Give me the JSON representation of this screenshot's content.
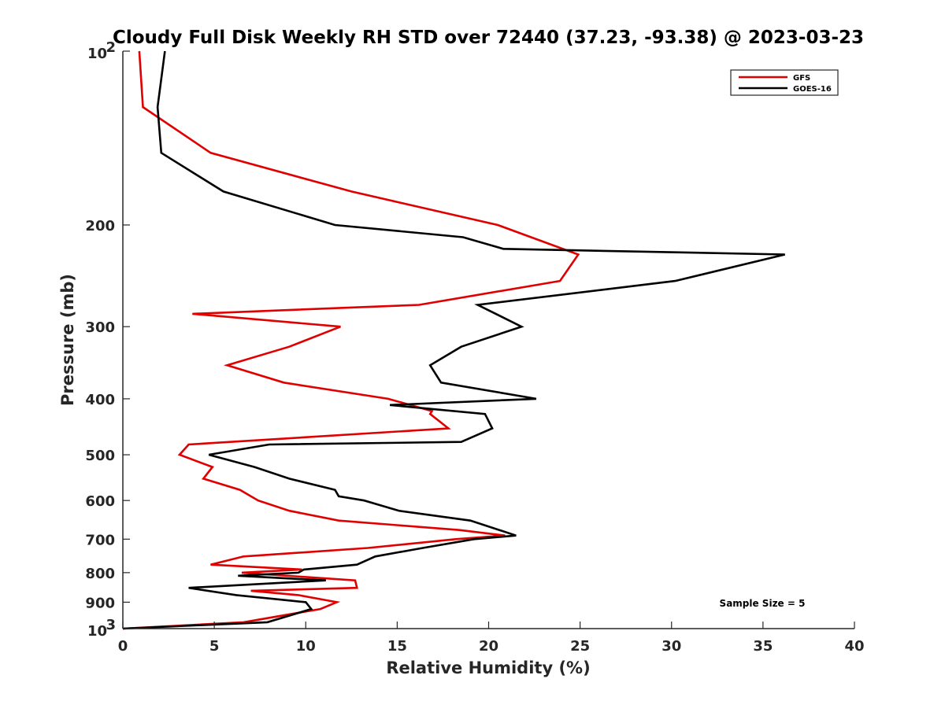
{
  "chart_data": {
    "type": "line",
    "title": "Cloudy Full Disk Weekly RH STD over 72440 (37.23, -93.38) @ 2023-03-23",
    "xlabel": "Relative Humidity (%)",
    "ylabel": "Pressure (mb)",
    "xlim": [
      0,
      40
    ],
    "ylim": [
      100,
      1000
    ],
    "y_scale": "log",
    "y_reversed": true,
    "grid": false,
    "legend_position": "top-right",
    "x_ticks": [
      "0",
      "5",
      "10",
      "15",
      "20",
      "25",
      "30",
      "35",
      "40"
    ],
    "y_ticks": [
      {
        "value": 100,
        "base": "10",
        "exp": "2"
      },
      {
        "value": 200,
        "label": "200"
      },
      {
        "value": 300,
        "label": "300"
      },
      {
        "value": 400,
        "label": "400"
      },
      {
        "value": 500,
        "label": "500"
      },
      {
        "value": 600,
        "label": "600"
      },
      {
        "value": 700,
        "label": "700"
      },
      {
        "value": 800,
        "label": "800"
      },
      {
        "value": 900,
        "label": "900"
      },
      {
        "value": 1000,
        "base": "10",
        "exp": "3"
      }
    ],
    "annotation": "Sample Size = 5",
    "series": [
      {
        "name": "GFS",
        "color": "#e00000",
        "points": [
          [
            0.9,
            100
          ],
          [
            1.1,
            125
          ],
          [
            4.8,
            150
          ],
          [
            12.5,
            175
          ],
          [
            20.5,
            200
          ],
          [
            24.9,
            225
          ],
          [
            23.9,
            250
          ],
          [
            16.2,
            275
          ],
          [
            3.8,
            285
          ],
          [
            11.9,
            300
          ],
          [
            9.1,
            325
          ],
          [
            5.7,
            350
          ],
          [
            8.8,
            375
          ],
          [
            14.5,
            400
          ],
          [
            16.9,
            420
          ],
          [
            16.8,
            425
          ],
          [
            17.8,
            450
          ],
          [
            3.6,
            480
          ],
          [
            3.1,
            500
          ],
          [
            4.9,
            525
          ],
          [
            4.4,
            550
          ],
          [
            6.4,
            575
          ],
          [
            7.4,
            600
          ],
          [
            9.1,
            625
          ],
          [
            11.8,
            650
          ],
          [
            18.4,
            675
          ],
          [
            20.9,
            690
          ],
          [
            18.2,
            700
          ],
          [
            13.4,
            725
          ],
          [
            6.6,
            750
          ],
          [
            4.8,
            775
          ],
          [
            9.8,
            790
          ],
          [
            6.5,
            800
          ],
          [
            12.7,
            825
          ],
          [
            12.8,
            850
          ],
          [
            7.0,
            860
          ],
          [
            9.6,
            875
          ],
          [
            11.7,
            900
          ],
          [
            10.8,
            925
          ],
          [
            6.6,
            975
          ],
          [
            0.0,
            1000
          ]
        ]
      },
      {
        "name": "GOES-16",
        "color": "#000000",
        "points": [
          [
            2.3,
            100
          ],
          [
            1.9,
            125
          ],
          [
            2.1,
            150
          ],
          [
            5.5,
            175
          ],
          [
            11.6,
            200
          ],
          [
            18.6,
            210
          ],
          [
            20.8,
            220
          ],
          [
            36.2,
            225
          ],
          [
            30.2,
            250
          ],
          [
            19.4,
            275
          ],
          [
            21.8,
            300
          ],
          [
            18.5,
            325
          ],
          [
            16.8,
            350
          ],
          [
            17.4,
            375
          ],
          [
            22.6,
            400
          ],
          [
            14.6,
            410
          ],
          [
            19.8,
            425
          ],
          [
            20.2,
            450
          ],
          [
            18.5,
            475
          ],
          [
            8.0,
            480
          ],
          [
            4.7,
            500
          ],
          [
            7.2,
            525
          ],
          [
            9.1,
            550
          ],
          [
            11.6,
            575
          ],
          [
            11.8,
            590
          ],
          [
            13.2,
            600
          ],
          [
            15.1,
            625
          ],
          [
            19.0,
            650
          ],
          [
            21.5,
            690
          ],
          [
            19.2,
            700
          ],
          [
            16.4,
            725
          ],
          [
            13.8,
            750
          ],
          [
            12.8,
            775
          ],
          [
            9.9,
            790
          ],
          [
            9.6,
            800
          ],
          [
            6.3,
            810
          ],
          [
            11.1,
            825
          ],
          [
            3.6,
            850
          ],
          [
            6.2,
            875
          ],
          [
            10.0,
            900
          ],
          [
            10.3,
            925
          ],
          [
            7.9,
            975
          ],
          [
            0.0,
            1000
          ]
        ]
      }
    ]
  }
}
